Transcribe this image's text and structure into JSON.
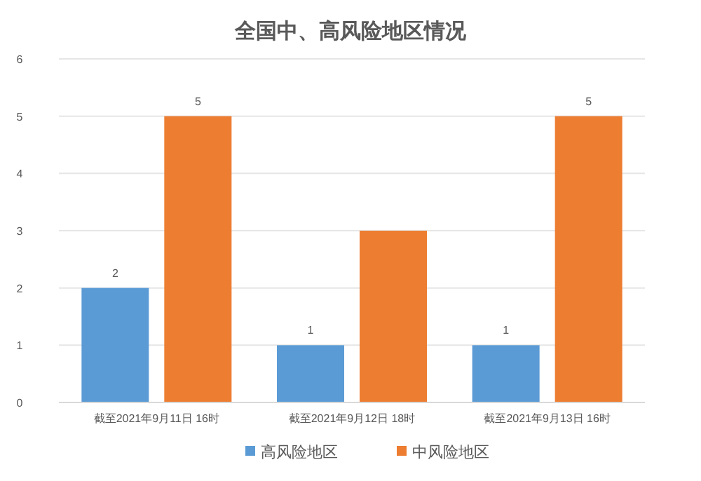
{
  "chart_data": {
    "type": "bar",
    "title": "全国中、高风险地区情况",
    "categories": [
      "截至2021年9月11日 16时",
      "截至2021年9月12日 18时",
      "截至2021年9月13日 16时"
    ],
    "series": [
      {
        "name": "高风险地区",
        "color": "#5b9bd5",
        "values": [
          2,
          1,
          1
        ],
        "value_labels": [
          "2",
          "1",
          "1"
        ]
      },
      {
        "name": "中风险地区",
        "color": "#ed7d31",
        "values": [
          5,
          3,
          5
        ],
        "value_labels": [
          "5",
          null,
          "5"
        ]
      }
    ],
    "ylim": [
      0,
      6
    ],
    "yticks": [
      0,
      1,
      2,
      3,
      4,
      5,
      6
    ],
    "grid": "y",
    "legend": "bottom"
  }
}
